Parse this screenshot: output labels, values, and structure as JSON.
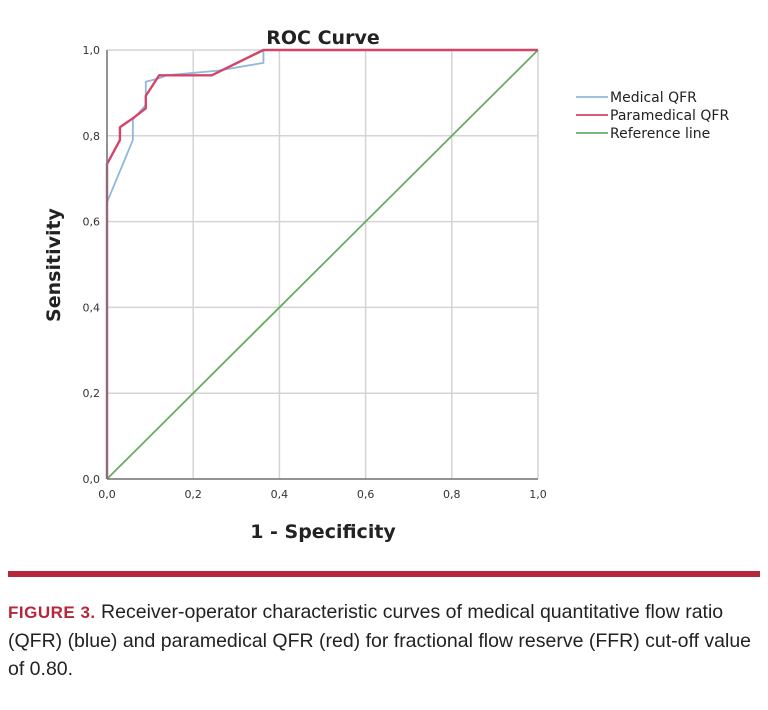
{
  "chart_data": {
    "type": "line",
    "title": "ROC Curve",
    "xlabel": "1 - Specificity",
    "ylabel": "Sensitivity",
    "xlim": [
      0,
      1
    ],
    "ylim": [
      0,
      1
    ],
    "xticks": [
      "0,0",
      "0,2",
      "0,4",
      "0,6",
      "0,8",
      "1,0"
    ],
    "yticks": [
      "0,0",
      "0,2",
      "0,4",
      "0,6",
      "0,8",
      "1,0"
    ],
    "grid": true,
    "legend_position": "right",
    "series": [
      {
        "name": "Medical QFR",
        "color": "#8fb8dc",
        "points": [
          [
            0,
            0
          ],
          [
            0,
            0.645
          ],
          [
            0.06,
            0.79
          ],
          [
            0.06,
            0.838
          ],
          [
            0.09,
            0.872
          ],
          [
            0.09,
            0.926
          ],
          [
            0.121,
            0.934
          ],
          [
            0.138,
            0.941
          ],
          [
            0.258,
            0.952
          ],
          [
            0.363,
            0.97
          ],
          [
            0.363,
            1.0
          ],
          [
            1.0,
            1.0
          ]
        ]
      },
      {
        "name": "Paramedical QFR",
        "color": "#d4456a",
        "points": [
          [
            0,
            0
          ],
          [
            0,
            0.734
          ],
          [
            0.03,
            0.79
          ],
          [
            0.03,
            0.82
          ],
          [
            0.063,
            0.843
          ],
          [
            0.09,
            0.864
          ],
          [
            0.09,
            0.893
          ],
          [
            0.121,
            0.941
          ],
          [
            0.243,
            0.941
          ],
          [
            0.363,
            1.0
          ],
          [
            1.0,
            1.0
          ]
        ]
      },
      {
        "name": "Reference line",
        "color": "#6aab62",
        "points": [
          [
            0,
            0
          ],
          [
            1,
            1
          ]
        ]
      }
    ]
  },
  "caption": {
    "label": "FIGURE 3.",
    "text": " Receiver-operator characteristic curves of medical quantitative flow ratio (QFR) (blue) and paramedical QFR (red) for fractional flow reserve (FFR) cut-off value of 0.80."
  },
  "colors": {
    "divider": "#b5273a"
  }
}
